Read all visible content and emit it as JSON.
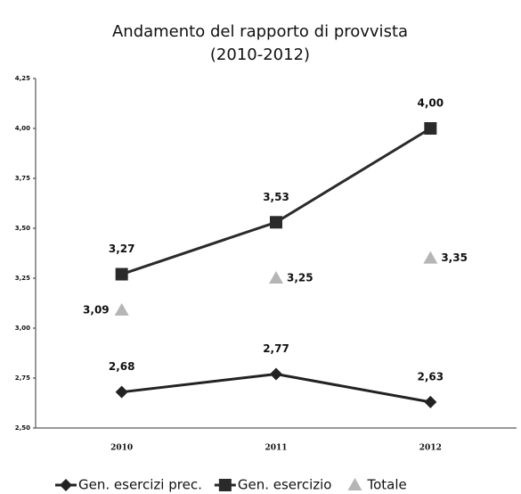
{
  "chart_data": {
    "type": "line",
    "title": [
      "Andamento del rapporto di provvista",
      "(2010-2012)"
    ],
    "categories": [
      "2010",
      "2011",
      "2012"
    ],
    "series": [
      {
        "name": "Gen. esercizi prec.",
        "color": "#222222",
        "marker": "diamond",
        "line": true,
        "values": [
          2.68,
          2.77,
          2.63
        ],
        "value_labels": [
          "2,68",
          "2,77",
          "2,63"
        ]
      },
      {
        "name": "Gen. esercizio",
        "color": "#2a2a2a",
        "marker": "square",
        "line": true,
        "values": [
          3.27,
          3.53,
          4.0
        ],
        "value_labels": [
          "3,27",
          "3,53",
          "4,00"
        ]
      },
      {
        "name": "Totale",
        "color": "#b5b5b5",
        "marker": "triangle",
        "line": false,
        "values": [
          3.09,
          3.25,
          3.35
        ],
        "value_labels": [
          "3,09",
          "3,25",
          "3,35"
        ]
      }
    ],
    "ylim": [
      2.5,
      4.25
    ],
    "yticks": [
      {
        "value": 2.5,
        "label": "2,50"
      },
      {
        "value": 2.75,
        "label": "2,75"
      },
      {
        "value": 3.0,
        "label": "3,00"
      },
      {
        "value": 3.25,
        "label": "3,25"
      },
      {
        "value": 3.5,
        "label": "3,50"
      },
      {
        "value": 3.75,
        "label": "3,75"
      },
      {
        "value": 4.0,
        "label": "4,00"
      },
      {
        "value": 4.25,
        "label": "4,25"
      }
    ],
    "grid": false,
    "legend": "bottom"
  }
}
